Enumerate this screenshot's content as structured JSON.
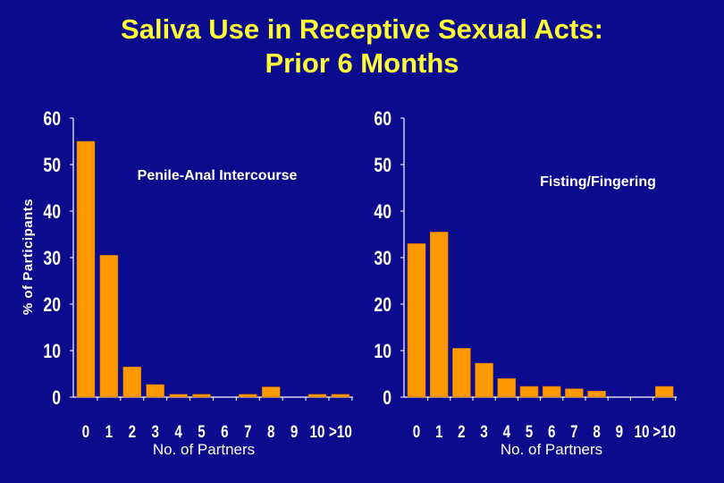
{
  "title_line1": "Saliva Use in Receptive Sexual Acts:",
  "title_line2": "Prior 6 Months",
  "ylabel": "% of Participants",
  "colors": {
    "background": "#0b0b8e",
    "bar": "#ff9900",
    "axis": "#ffffff",
    "title": "#ffff33"
  },
  "chart_data": [
    {
      "type": "bar",
      "title": "Penile-Anal Intercourse",
      "xlabel": "No. of Partners",
      "ylabel": "% of Participants",
      "ylim": [
        0,
        60
      ],
      "yticks": [
        "0",
        "10",
        "20",
        "30",
        "40",
        "50",
        "60"
      ],
      "categories": [
        "0",
        "1",
        "2",
        "3",
        "4",
        "5",
        "6",
        "7",
        "8",
        "9",
        "10",
        ">10"
      ],
      "values": [
        55,
        30.5,
        6.5,
        2.7,
        0.6,
        0.6,
        0,
        0.6,
        2.2,
        0,
        0.6,
        0.6
      ]
    },
    {
      "type": "bar",
      "title": "Fisting/Fingering",
      "xlabel": "No. of Partners",
      "ylabel": "% of Participants",
      "ylim": [
        0,
        60
      ],
      "yticks": [
        "0",
        "10",
        "20",
        "30",
        "40",
        "50",
        "60"
      ],
      "categories": [
        "0",
        "1",
        "2",
        "3",
        "4",
        "5",
        "6",
        "7",
        "8",
        "9",
        "10",
        ">10"
      ],
      "values": [
        33,
        35.5,
        10.5,
        7.3,
        4,
        2.3,
        2.3,
        1.8,
        1.3,
        0,
        0,
        2.3
      ]
    }
  ]
}
